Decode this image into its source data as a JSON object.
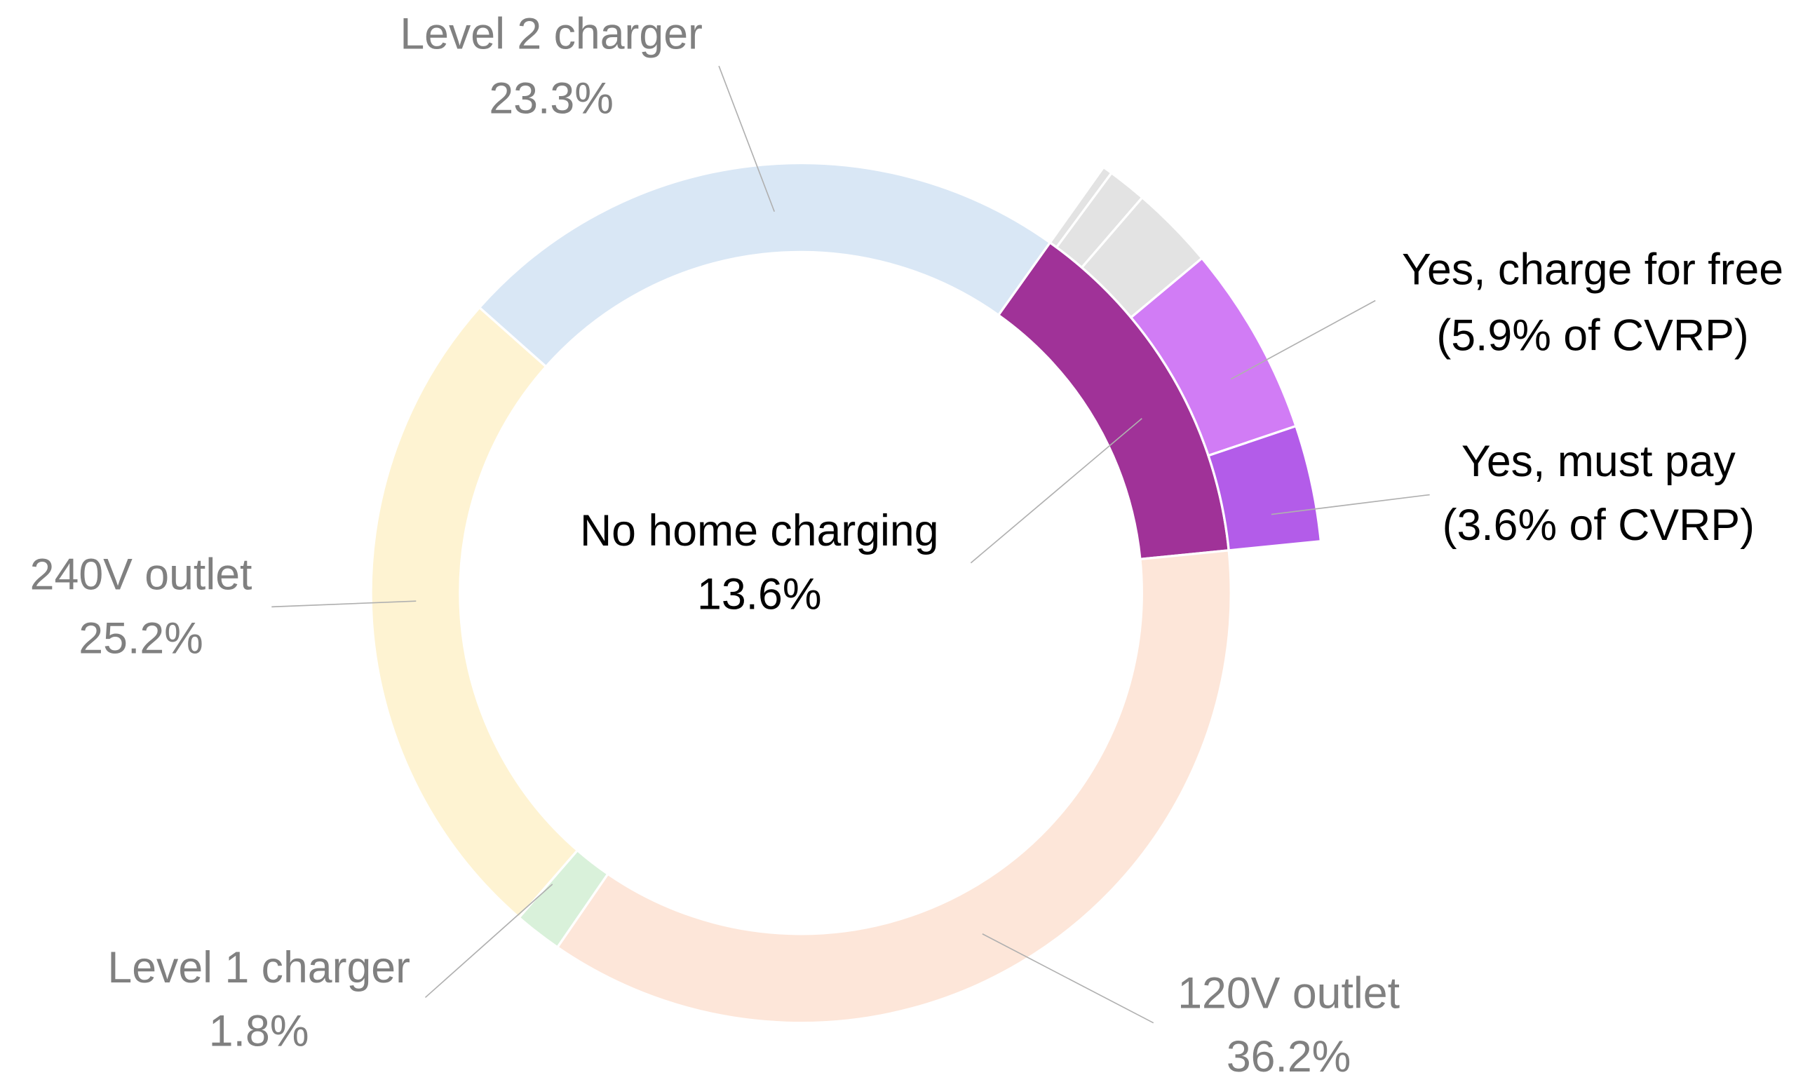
{
  "chart_data": [
    {
      "type": "donut",
      "categories": [
        "No home charging",
        "120V outlet",
        "Level 1 charger",
        "240V outlet",
        "Level 2 charger"
      ],
      "values": [
        13.6,
        36.2,
        1.8,
        25.2,
        23.3
      ],
      "value_labels": [
        "13.6%",
        "36.2%",
        "1.8%",
        "25.2%",
        "23.3%"
      ],
      "colors": [
        "#a03298",
        "#fde6d9",
        "#d9f1da",
        "#fef3d2",
        "#d9e7f5"
      ]
    },
    {
      "type": "donut",
      "categories": [
        null,
        null,
        null,
        "Yes, charge for free",
        "Yes, must pay"
      ],
      "values": [
        0.3,
        1.2,
        2.6,
        5.9,
        3.6
      ],
      "value_labels": [
        null,
        null,
        null,
        "(5.9% of CVRP)",
        "(3.6% of CVRP)"
      ],
      "colors": [
        "#e3e3e3",
        "#e3e3e3",
        "#e3e3e3",
        "#d17cf5",
        "#b35ce9"
      ]
    }
  ]
}
